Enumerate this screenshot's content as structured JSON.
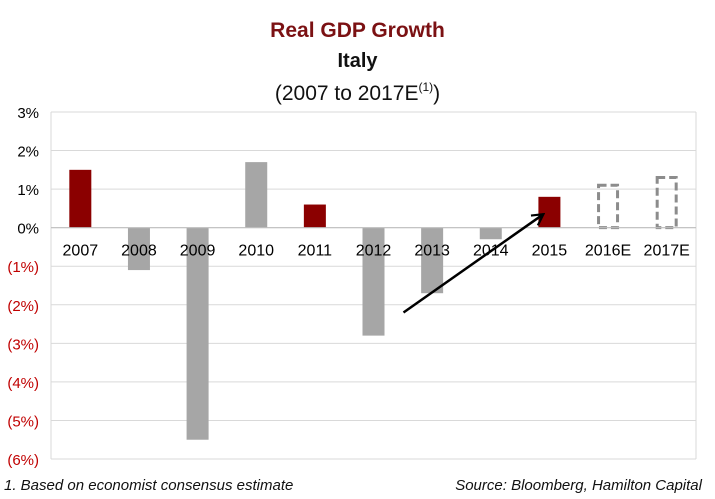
{
  "chart_data": {
    "type": "bar",
    "title": "Real GDP Growth",
    "subtitle": "Italy",
    "date_range": {
      "prefix": "(2007 to 2017E",
      "footnote_mark": "(1)",
      "suffix": ")"
    },
    "categories": [
      "2007",
      "2008",
      "2009",
      "2010",
      "2011",
      "2012",
      "2013",
      "2014",
      "2015",
      "2016E",
      "2017E"
    ],
    "values": [
      1.5,
      -1.1,
      -5.5,
      1.7,
      0.6,
      -2.8,
      -1.7,
      -0.3,
      0.8,
      1.1,
      1.3
    ],
    "bar_styles": [
      "highlight",
      "base",
      "base",
      "base",
      "highlight",
      "base",
      "base",
      "base",
      "highlight",
      "estimate",
      "estimate"
    ],
    "ylim": [
      -6,
      3
    ],
    "yticks": [
      {
        "value": 3,
        "label": "3%"
      },
      {
        "value": 2,
        "label": "2%"
      },
      {
        "value": 1,
        "label": "1%"
      },
      {
        "value": 0,
        "label": "0%"
      },
      {
        "value": -1,
        "label": "(1%)"
      },
      {
        "value": -2,
        "label": "(2%)"
      },
      {
        "value": -3,
        "label": "(3%)"
      },
      {
        "value": -4,
        "label": "(4%)"
      },
      {
        "value": -5,
        "label": "(5%)"
      },
      {
        "value": -6,
        "label": "(6%)"
      }
    ],
    "grid": true,
    "trend_arrow": {
      "from": {
        "category": "2012",
        "value": -2.2
      },
      "to": {
        "category": "2015",
        "value": 0.35
      }
    },
    "colors": {
      "highlight": "#8b0000",
      "base": "#a6a6a6",
      "estimate_outline": "#8c8c8c",
      "negative_tick": "#c00000",
      "positive_tick": "#000000",
      "grid": "#d9d9d9"
    }
  },
  "footnotes": {
    "left": "1. Based on economist consensus estimate",
    "right": "Source: Bloomberg, Hamilton Capital"
  }
}
